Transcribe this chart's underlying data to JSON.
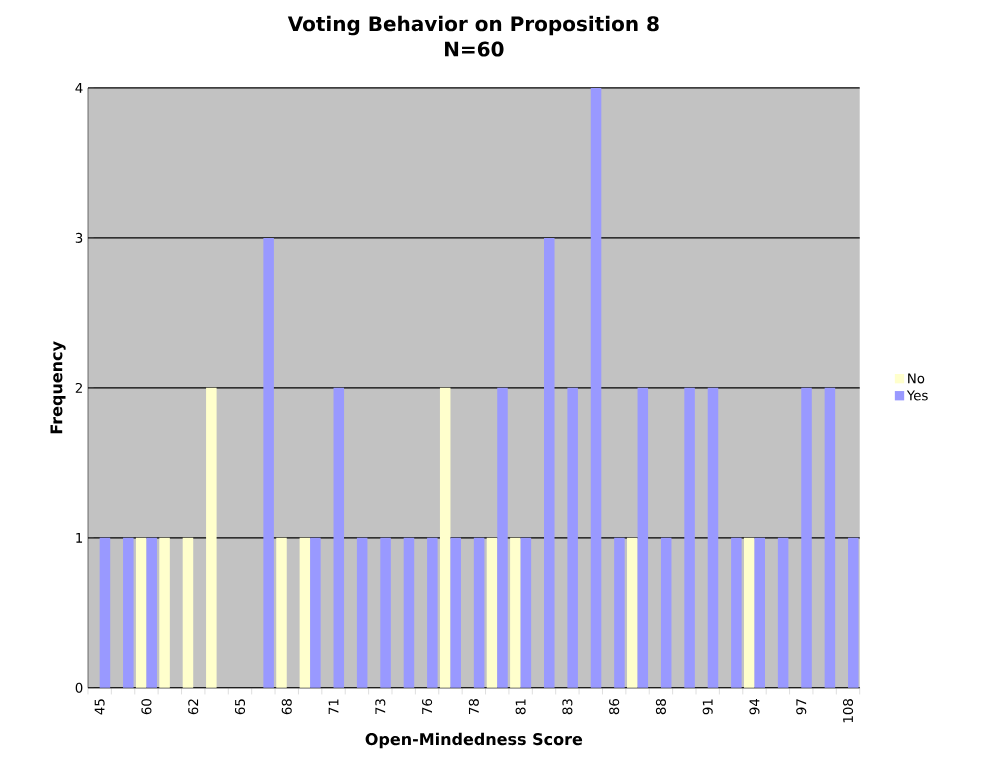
{
  "chart_data": {
    "type": "bar",
    "title": "Voting Behavior on Proposition 8",
    "subtitle": "N=60",
    "xlabel": "Open-Mindedness Score",
    "ylabel": "Frequency",
    "categories": [
      "45",
      null,
      "60",
      null,
      "62",
      null,
      "65",
      null,
      "68",
      null,
      "71",
      null,
      "73",
      null,
      "76",
      null,
      "78",
      null,
      "81",
      null,
      "83",
      null,
      "86",
      null,
      "88",
      null,
      "91",
      null,
      "94",
      null,
      "97",
      null,
      "108"
    ],
    "series": [
      {
        "name": "No",
        "color": "#ffffcc",
        "values": [
          0,
          0,
          1,
          1,
          1,
          2,
          0,
          0,
          1,
          1,
          0,
          0,
          0,
          0,
          0,
          2,
          0,
          1,
          1,
          0,
          0,
          0,
          0,
          1,
          0,
          0,
          0,
          0,
          1,
          0,
          0,
          0,
          0
        ]
      },
      {
        "name": "Yes",
        "color": "#9999ff",
        "values": [
          1,
          1,
          1,
          0,
          0,
          0,
          0,
          3,
          0,
          1,
          2,
          1,
          1,
          1,
          1,
          1,
          1,
          2,
          1,
          3,
          2,
          4,
          1,
          2,
          1,
          2,
          2,
          1,
          1,
          1,
          2,
          2,
          1
        ]
      }
    ],
    "ylim": [
      0,
      4
    ],
    "yticks": [
      0,
      1,
      2,
      3,
      4
    ],
    "grid": "y",
    "legend": "right"
  }
}
